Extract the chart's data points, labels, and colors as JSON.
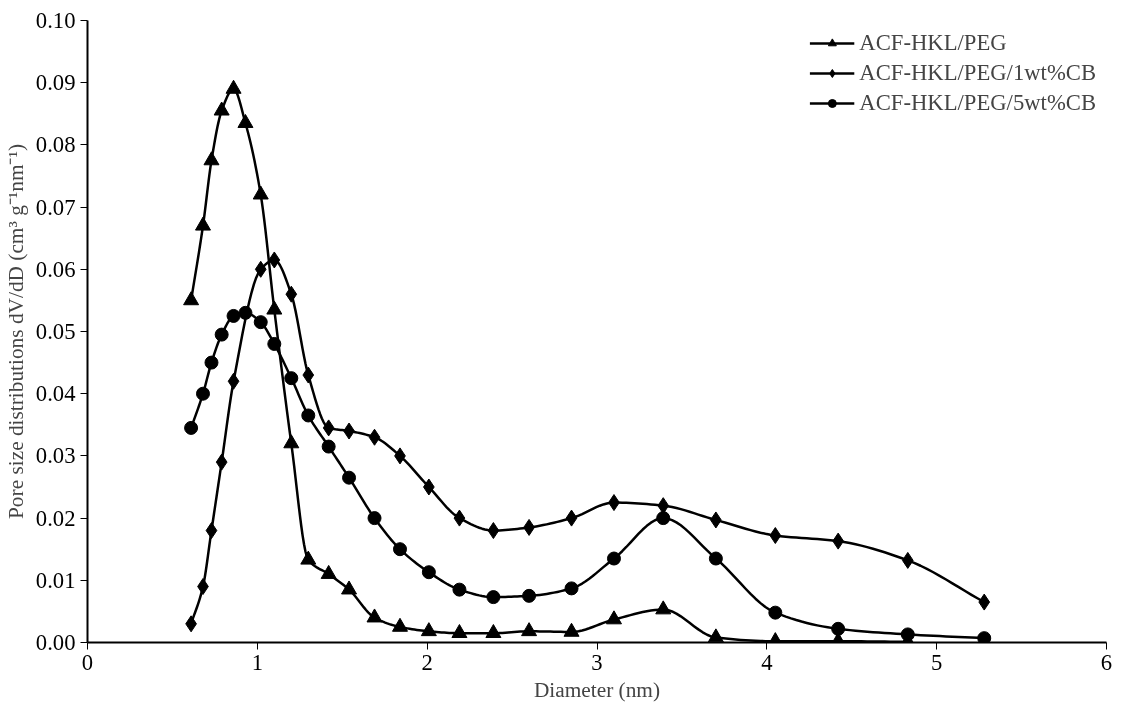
{
  "chart_data": {
    "type": "line",
    "xlabel": "Diameter (nm)",
    "ylabel": "Pore size distributions dV/dD (cm³ g⁻¹nm⁻¹)",
    "xlim": [
      0,
      6
    ],
    "xticks": [
      0,
      1,
      2,
      3,
      4,
      5,
      6
    ],
    "ylim": [
      0,
      0.1
    ],
    "yticks": [
      {
        "value": 0,
        "label": "0.00"
      },
      {
        "value": 0.01,
        "label": "0.01"
      },
      {
        "value": 0.02,
        "label": "0.02"
      },
      {
        "value": 0.03,
        "label": "0.03"
      },
      {
        "value": 0.04,
        "label": "0.04"
      },
      {
        "value": 0.05,
        "label": "0.05"
      },
      {
        "value": 0.06,
        "label": "0.06"
      },
      {
        "value": 0.07,
        "label": "0.07"
      },
      {
        "value": 0.08,
        "label": "0.08"
      },
      {
        "value": 0.09,
        "label": "0.09"
      },
      {
        "value": 0.1,
        "label": "0.10"
      }
    ],
    "grid": false,
    "legend": "top right",
    "line_style": "solid",
    "series": [
      {
        "name": "ACF-HKL/PEG",
        "color": "#000000",
        "marker": "triangle",
        "x": [
          0.61,
          0.68,
          0.73,
          0.79,
          0.86,
          0.93,
          1.02,
          1.1,
          1.2,
          1.3,
          1.42,
          1.54,
          1.69,
          1.84,
          2.01,
          2.19,
          2.39,
          2.6,
          2.85,
          3.1,
          3.39,
          3.7,
          4.05,
          4.42,
          4.83
        ],
        "values": [
          0.055,
          0.067,
          0.0775,
          0.0855,
          0.089,
          0.0835,
          0.072,
          0.0535,
          0.032,
          0.0133,
          0.011,
          0.0085,
          0.004,
          0.0025,
          0.0018,
          0.0015,
          0.0015,
          0.0018,
          0.0017,
          0.0037,
          0.0053,
          0.0008,
          0.0002,
          0.0002,
          0.0001
        ]
      },
      {
        "name": "ACF-HKL/PEG/1wt%CB",
        "color": "#000000",
        "marker": "diamond",
        "x": [
          0.61,
          0.68,
          0.73,
          0.79,
          0.86,
          1.02,
          1.1,
          1.2,
          1.3,
          1.42,
          1.54,
          1.69,
          1.84,
          2.01,
          2.19,
          2.39,
          2.6,
          2.85,
          3.1,
          3.39,
          3.7,
          4.05,
          4.42,
          4.83,
          5.28
        ],
        "values": [
          0.003,
          0.009,
          0.018,
          0.029,
          0.042,
          0.06,
          0.0615,
          0.056,
          0.043,
          0.0345,
          0.034,
          0.033,
          0.03,
          0.025,
          0.02,
          0.018,
          0.0185,
          0.02,
          0.0225,
          0.022,
          0.0197,
          0.0172,
          0.0163,
          0.0132,
          0.0065
        ]
      },
      {
        "name": "ACF-HKL/PEG/5wt%CB",
        "color": "#000000",
        "marker": "circle",
        "x": [
          0.61,
          0.68,
          0.73,
          0.79,
          0.86,
          0.93,
          1.02,
          1.1,
          1.2,
          1.3,
          1.42,
          1.54,
          1.69,
          1.84,
          2.01,
          2.19,
          2.39,
          2.6,
          2.85,
          3.1,
          3.39,
          3.7,
          4.05,
          4.42,
          4.83,
          5.28
        ],
        "values": [
          0.0345,
          0.04,
          0.045,
          0.0495,
          0.0525,
          0.053,
          0.0515,
          0.048,
          0.0425,
          0.0365,
          0.0315,
          0.0265,
          0.02,
          0.015,
          0.0113,
          0.0085,
          0.0073,
          0.0075,
          0.0087,
          0.0135,
          0.02,
          0.0135,
          0.0048,
          0.0022,
          0.0013,
          0.0007
        ]
      }
    ]
  }
}
